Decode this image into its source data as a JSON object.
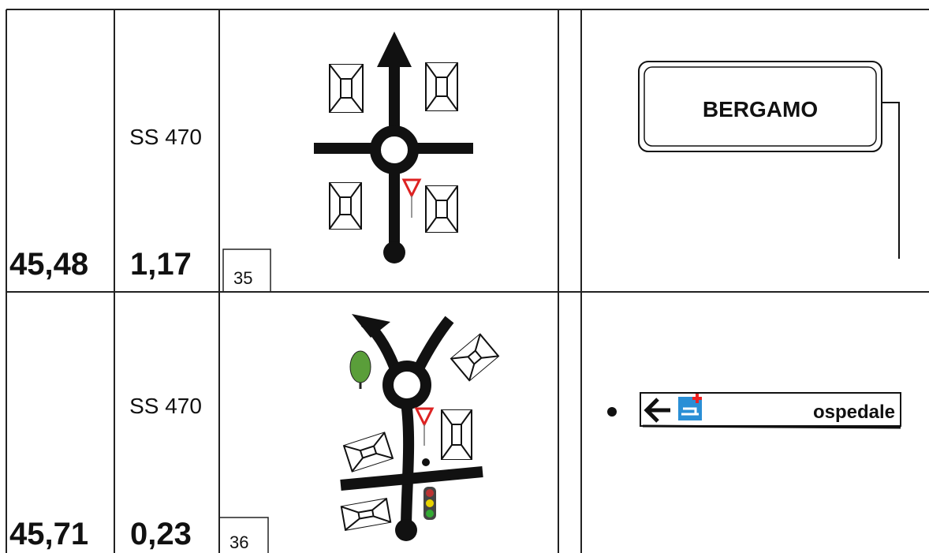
{
  "rows": [
    {
      "km_total": "45,48",
      "road": "SS 470",
      "km_partial": "1,17",
      "step": "35",
      "sign": "BERGAMO"
    },
    {
      "km_total": "45,71",
      "road": "SS 470",
      "km_partial": "0,23",
      "step": "36",
      "sign": "ospedale"
    }
  ]
}
